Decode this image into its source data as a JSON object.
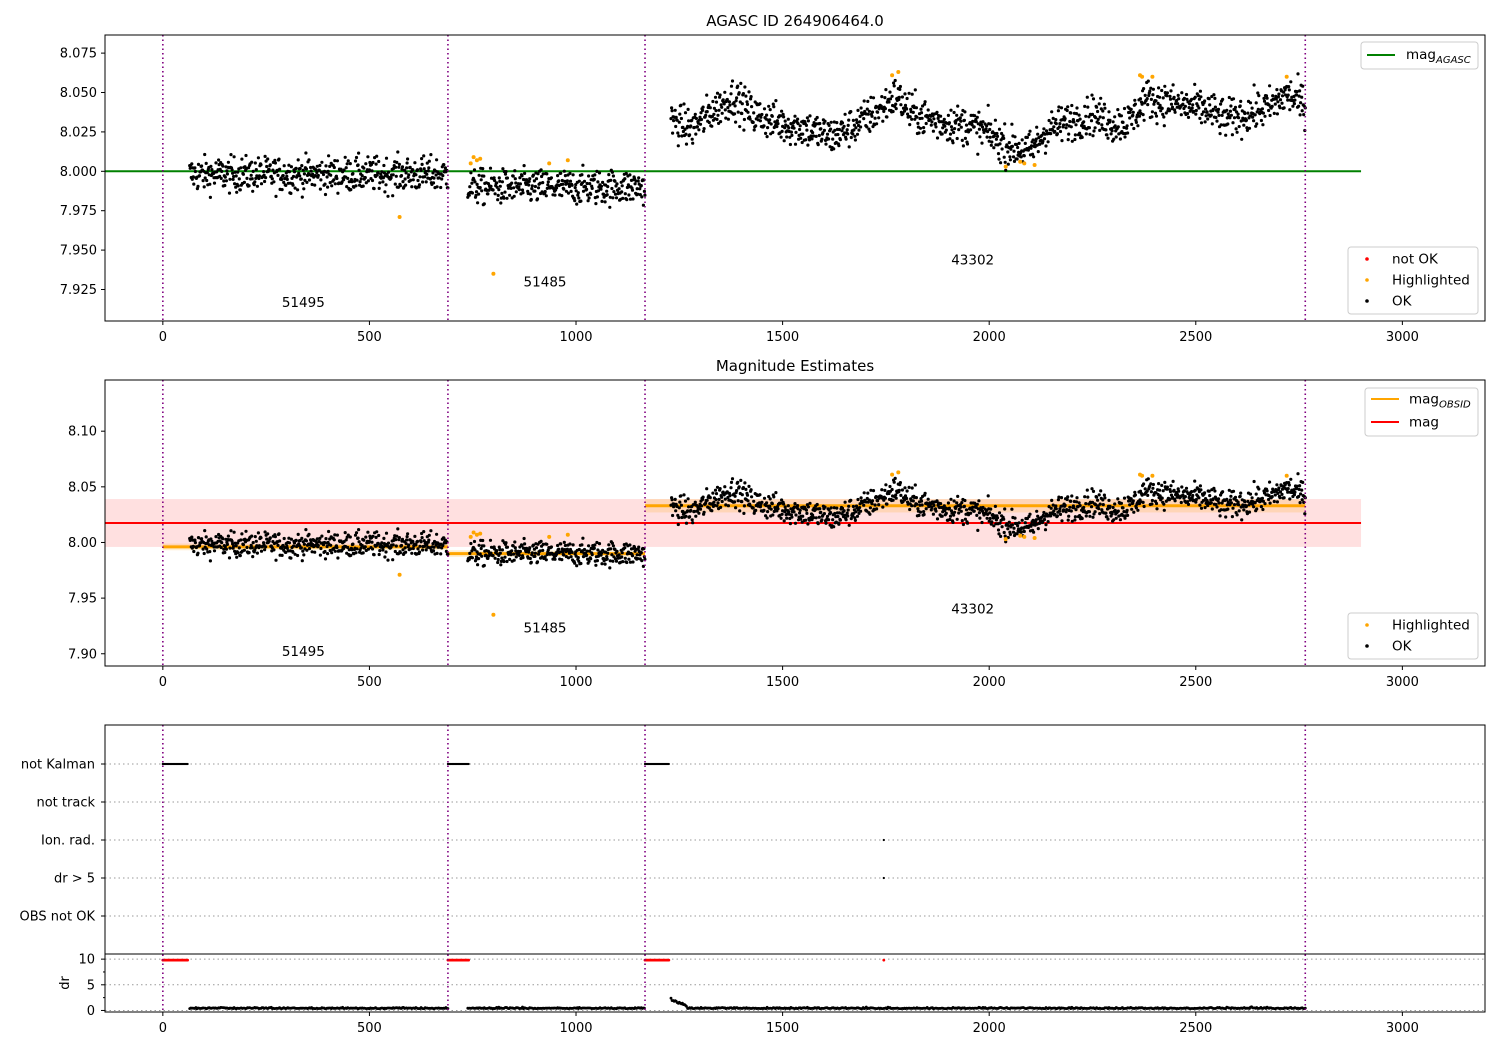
{
  "chart_data": [
    {
      "type": "scatter",
      "title": "AGASC ID 264906464.0",
      "xlim": [
        -140,
        3200
      ],
      "ylim": [
        7.905,
        8.0865
      ],
      "x_ticks": [
        0,
        500,
        1000,
        1500,
        2000,
        2500,
        3000
      ],
      "y_ticks": [
        7.925,
        7.95,
        7.975,
        8.0,
        8.025,
        8.05,
        8.075
      ],
      "y_tick_labels": [
        "7.925",
        "7.950",
        "7.975",
        "8.000",
        "8.025",
        "8.050",
        "8.075"
      ],
      "obs_boundaries": [
        0,
        690,
        1167,
        2765
      ],
      "obs_labels": [
        {
          "text": "51495",
          "x": 340,
          "y": 7.914
        },
        {
          "text": "51485",
          "x": 925,
          "y": 7.927
        },
        {
          "text": "43302",
          "x": 1960,
          "y": 7.941
        }
      ],
      "reference_line": {
        "name": "mag$_{AGASC}$",
        "label": "mag",
        "sub": "AGASC",
        "value": 8.0,
        "x_range": [
          0,
          2900
        ],
        "color": "#008000"
      },
      "legend_top": [
        {
          "label": "mag",
          "sub": "AGASC",
          "color": "#008000",
          "kind": "line"
        }
      ],
      "legend_bottom": [
        {
          "label": "not OK",
          "color": "#ff0000",
          "kind": "point"
        },
        {
          "label": "Highlighted",
          "color": "#ffa500",
          "kind": "point"
        },
        {
          "label": "OK",
          "color": "#000000",
          "kind": "point"
        }
      ],
      "segments": [
        {
          "obsid": "51495",
          "x_range": [
            65,
            690
          ],
          "mean": 7.998,
          "spread": 0.0055
        },
        {
          "obsid": "51485",
          "x_range": [
            738,
            1167
          ],
          "mean": 7.99,
          "spread": 0.0055
        },
        {
          "obsid": "43302",
          "x_range": [
            1230,
            2765
          ],
          "mean": 8.033,
          "spread": 0.006
        }
      ],
      "trend_43302": [
        [
          1230,
          8.032
        ],
        [
          1280,
          8.027
        ],
        [
          1330,
          8.038
        ],
        [
          1380,
          8.047
        ],
        [
          1430,
          8.036
        ],
        [
          1500,
          8.03
        ],
        [
          1560,
          8.027
        ],
        [
          1620,
          8.022
        ],
        [
          1680,
          8.03
        ],
        [
          1740,
          8.04
        ],
        [
          1775,
          8.048
        ],
        [
          1810,
          8.037
        ],
        [
          1880,
          8.031
        ],
        [
          1950,
          8.029
        ],
        [
          2000,
          8.024
        ],
        [
          2040,
          8.016
        ],
        [
          2100,
          8.013
        ],
        [
          2140,
          8.026
        ],
        [
          2200,
          8.032
        ],
        [
          2250,
          8.036
        ],
        [
          2300,
          8.03
        ],
        [
          2340,
          8.032
        ],
        [
          2380,
          8.046
        ],
        [
          2440,
          8.043
        ],
        [
          2480,
          8.041
        ],
        [
          2530,
          8.039
        ],
        [
          2570,
          8.033
        ],
        [
          2620,
          8.036
        ],
        [
          2680,
          8.041
        ],
        [
          2720,
          8.049
        ],
        [
          2765,
          8.042
        ]
      ],
      "highlighted": [
        [
          573,
          7.971
        ],
        [
          745,
          8.005
        ],
        [
          752,
          8.009
        ],
        [
          760,
          8.007
        ],
        [
          768,
          8.008
        ],
        [
          800,
          7.935
        ],
        [
          935,
          8.005
        ],
        [
          980,
          8.007
        ],
        [
          1765,
          8.061
        ],
        [
          1780,
          8.063
        ],
        [
          2040,
          8.003
        ],
        [
          2075,
          8.006
        ],
        [
          2085,
          8.005
        ],
        [
          2110,
          8.004
        ],
        [
          2365,
          8.061
        ],
        [
          2370,
          8.06
        ],
        [
          2395,
          8.06
        ],
        [
          2720,
          8.06
        ]
      ],
      "not_ok": []
    },
    {
      "type": "scatter",
      "title": "Magnitude Estimates",
      "xlim": [
        -140,
        3200
      ],
      "ylim": [
        7.889,
        8.146
      ],
      "x_ticks": [
        0,
        500,
        1000,
        1500,
        2000,
        2500,
        3000
      ],
      "y_ticks": [
        7.9,
        7.95,
        8.0,
        8.05,
        8.1
      ],
      "y_tick_labels": [
        "7.90",
        "7.95",
        "8.00",
        "8.05",
        "8.10"
      ],
      "obs_boundaries": [
        0,
        690,
        1167,
        2765
      ],
      "obs_labels": [
        {
          "text": "51495",
          "x": 340,
          "y": 7.898
        },
        {
          "text": "51485",
          "x": 925,
          "y": 7.919
        },
        {
          "text": "43302",
          "x": 1960,
          "y": 7.936
        }
      ],
      "mag_line": {
        "value": 8.0175,
        "band": [
          7.996,
          8.039
        ],
        "x_range": [
          -140,
          2900
        ],
        "color": "#ff0000"
      },
      "mag_obsid": [
        {
          "x_range": [
            0,
            690
          ],
          "value": 7.996,
          "band": [
            7.993,
            7.999
          ]
        },
        {
          "x_range": [
            690,
            1167
          ],
          "value": 7.99,
          "band": [
            7.987,
            7.993
          ]
        },
        {
          "x_range": [
            1167,
            2765
          ],
          "value": 8.033,
          "band": [
            8.027,
            8.039
          ]
        }
      ],
      "legend_top": [
        {
          "label": "mag",
          "sub": "OBSID",
          "color": "#ffa500",
          "kind": "line"
        },
        {
          "label": "mag",
          "sub": "",
          "color": "#ff0000",
          "kind": "line"
        }
      ],
      "legend_bottom": [
        {
          "label": "Highlighted",
          "color": "#ffa500",
          "kind": "point"
        },
        {
          "label": "OK",
          "color": "#000000",
          "kind": "point"
        }
      ]
    },
    {
      "type": "scatter",
      "title": "",
      "xlim": [
        -140,
        3200
      ],
      "flag_rows": [
        "not Kalman",
        "not track",
        "Ion. rad.",
        "dr > 5",
        "OBS not OK"
      ],
      "flag_points": {
        "not Kalman": [
          [
            0,
            60
          ],
          [
            690,
            740
          ],
          [
            1167,
            1225
          ]
        ],
        "Ion. rad.": [
          [
            1745,
            1745
          ]
        ],
        "dr > 5": [
          [
            1745,
            1745
          ]
        ]
      },
      "dr_axis": {
        "ylabel": "dr",
        "ylim": [
          -0.3,
          11
        ],
        "y_ticks": [
          0,
          5,
          10
        ],
        "y_tick_labels": [
          "0",
          "5",
          "10"
        ]
      },
      "dr_red_segments": [
        [
          0,
          60
        ],
        [
          690,
          740
        ],
        [
          1167,
          1225
        ],
        [
          1745,
          1745
        ]
      ],
      "dr_value_red": 9.8,
      "x_ticks": [
        0,
        500,
        1000,
        1500,
        2000,
        2500,
        3000
      ]
    }
  ]
}
